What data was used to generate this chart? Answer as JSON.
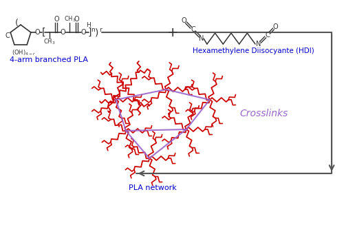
{
  "label_4arm": "4-arm branched PLA",
  "label_hdi": "Hexamethylene Diisocyante (HDI)",
  "label_crosslinks": "Crosslinks",
  "label_network": "PLA network",
  "color_blue": "#0000cc",
  "color_purple": "#9966cc",
  "color_black": "#333333",
  "color_red": "#cc0000",
  "color_arrow": "#555555",
  "bg": "#ffffff",
  "figw": 5.0,
  "figh": 3.4,
  "dpi": 100
}
